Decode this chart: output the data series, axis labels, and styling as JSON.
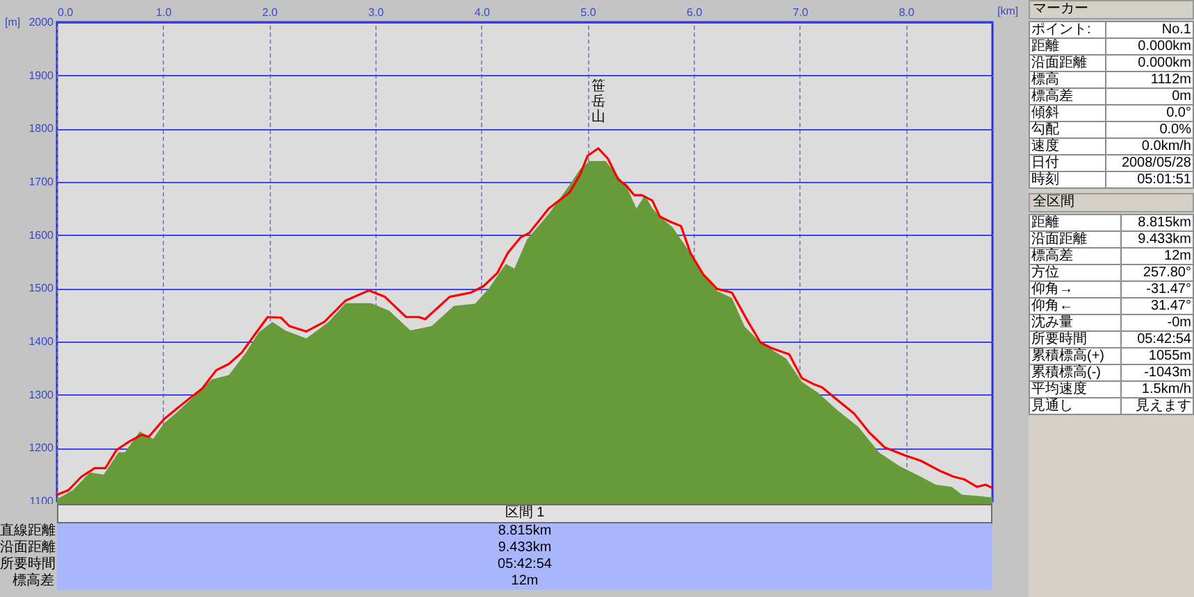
{
  "chart_data": [
    {
      "type": "area",
      "xlabel": "[km]",
      "ylabel": "[m]",
      "xlim": [
        0,
        8.815
      ],
      "ylim": [
        1100,
        2000
      ],
      "xticks": [
        {
          "value": 0,
          "label": "0.0"
        },
        {
          "value": 1,
          "label": "1.0"
        },
        {
          "value": 2,
          "label": "2.0"
        },
        {
          "value": 3,
          "label": "3.0"
        },
        {
          "value": 4,
          "label": "4.0"
        },
        {
          "value": 5,
          "label": "5.0"
        },
        {
          "value": 6,
          "label": "6.0"
        },
        {
          "value": 7,
          "label": "7.0"
        },
        {
          "value": 8,
          "label": "8.0"
        }
      ],
      "yticks": [
        1100,
        1200,
        1300,
        1400,
        1500,
        1600,
        1700,
        1800,
        1900,
        2000
      ],
      "grid": true,
      "series": [
        {
          "type": "area",
          "color": "#679a38",
          "x": [
            0,
            0.15,
            0.31,
            0.44,
            0.58,
            0.64,
            0.78,
            0.905,
            1.007,
            1.13,
            1.33,
            1.46,
            1.62,
            1.78,
            1.9,
            2.03,
            2.15,
            2.35,
            2.56,
            2.72,
            2.96,
            3.13,
            3.33,
            3.53,
            3.74,
            3.94,
            4.07,
            4.23,
            4.31,
            4.43,
            4.635,
            4.83,
            4.93,
            5.02,
            5.17,
            5.27,
            5.36,
            5.46,
            5.54,
            5.61,
            5.71,
            5.8,
            5.97,
            6.09,
            6.22,
            6.36,
            6.48,
            6.63,
            6.87,
            7.02,
            7.17,
            7.36,
            7.55,
            7.75,
            7.94,
            8.14,
            8.28,
            8.43,
            8.53,
            8.67,
            8.815
          ],
          "values": [
            1104,
            1121,
            1154,
            1150,
            1192,
            1192,
            1231,
            1217,
            1246,
            1267,
            1304,
            1329,
            1337,
            1379,
            1417,
            1437,
            1421,
            1406,
            1437,
            1472,
            1472,
            1458,
            1421,
            1429,
            1467,
            1471,
            1500,
            1546,
            1537,
            1592,
            1640,
            1694,
            1724,
            1739,
            1739,
            1714,
            1694,
            1650,
            1675,
            1650,
            1630,
            1615,
            1566,
            1526,
            1495,
            1482,
            1428,
            1398,
            1368,
            1324,
            1304,
            1270,
            1240,
            1191,
            1166,
            1146,
            1131,
            1127,
            1112,
            1110,
            1107
          ]
        },
        {
          "type": "line",
          "color": "#ff0000",
          "x": [
            0,
            0.11,
            0.23,
            0.355,
            0.456,
            0.56,
            0.68,
            0.8,
            0.865,
            1.007,
            1.21,
            1.37,
            1.5,
            1.62,
            1.74,
            1.86,
            1.985,
            2.11,
            2.19,
            2.35,
            2.52,
            2.72,
            2.94,
            3.09,
            3.29,
            3.41,
            3.47,
            3.7,
            3.9,
            4.02,
            4.15,
            4.25,
            4.37,
            4.45,
            4.635,
            4.83,
            4.93,
            5.0,
            5.1,
            5.19,
            5.29,
            5.36,
            5.44,
            5.51,
            5.61,
            5.68,
            5.78,
            5.88,
            5.97,
            6.09,
            6.22,
            6.36,
            6.51,
            6.63,
            6.73,
            6.9,
            7.02,
            7.14,
            7.21,
            7.36,
            7.51,
            7.65,
            7.8,
            7.99,
            8.14,
            8.33,
            8.45,
            8.55,
            8.67,
            8.75,
            8.815
          ],
          "values": [
            1112,
            1121,
            1146,
            1162,
            1162,
            1196,
            1212,
            1225,
            1221,
            1254,
            1287,
            1312,
            1346,
            1358,
            1379,
            1412,
            1446,
            1445,
            1429,
            1419,
            1437,
            1477,
            1496,
            1484,
            1446,
            1446,
            1442,
            1484,
            1492,
            1504,
            1529,
            1567,
            1596,
            1604,
            1650,
            1680,
            1714,
            1749,
            1763,
            1744,
            1704,
            1694,
            1675,
            1675,
            1665,
            1635,
            1625,
            1617,
            1566,
            1526,
            1499,
            1492,
            1438,
            1398,
            1388,
            1376,
            1331,
            1319,
            1314,
            1289,
            1265,
            1230,
            1201,
            1186,
            1176,
            1156,
            1146,
            1141,
            1127,
            1131,
            1125
          ]
        }
      ],
      "annotations": [
        {
          "text": "笹岳山",
          "x": 5.1,
          "y": 1763
        }
      ]
    },
    {
      "type": "other",
      "title": "マーカー",
      "annotations": [
        "ポイント:",
        "No.1",
        "距離",
        "0.000km",
        "沿面距離",
        "0.000km",
        "標高",
        "1112m",
        "標高差",
        "0m",
        "傾斜",
        "0.0°",
        "勾配",
        "0.0%",
        "速度",
        "0.0km/h",
        "日付",
        "2008/05/28",
        "時刻",
        "05:01:51"
      ]
    },
    {
      "type": "other",
      "title": "全区間",
      "annotations": [
        "距離",
        "8.815km",
        "沿面距離",
        "9.433km",
        "標高差",
        "12m",
        "方位",
        "257.80°",
        "仰角→",
        "-31.47°",
        "仰角←",
        "31.47°",
        "沈み量",
        "-0m",
        "所要時間",
        "05:42:54",
        "累積標高(+)",
        "1055m",
        "累積標高(-)",
        "-1043m",
        "平均速度",
        "1.5km/h",
        "見通し",
        "見えます"
      ]
    },
    {
      "type": "other",
      "title": "区間 1",
      "annotations": [
        "直線距離",
        "8.815km",
        "沿面距離",
        "9.433km",
        "所要時間",
        "05:42:54",
        "標高差",
        "12m"
      ]
    }
  ]
}
